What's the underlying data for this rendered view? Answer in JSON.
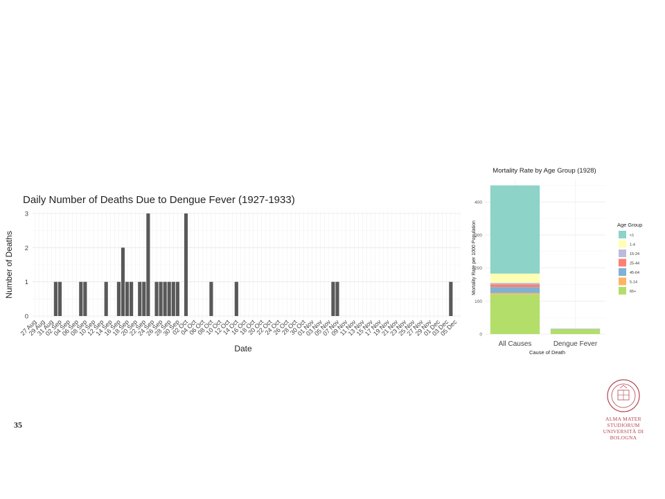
{
  "page": {
    "number": "35"
  },
  "logo": {
    "line1": "ALMA MATER STUDIORUM",
    "line2": "UNIVERSITÀ DI BOLOGNA",
    "seal_text": "ALMA MATER STUDIORUM A.D. 1088",
    "color": "#b5444d"
  },
  "chart_data": [
    {
      "type": "bar",
      "title": "Daily Number of Deaths Due to Dengue Fever (1927-1933)",
      "xlabel": "Date",
      "ylabel": "Number of Deaths",
      "ylim": [
        0,
        3
      ],
      "yticks": [
        0,
        1,
        2,
        3
      ],
      "bar_color": "#595959",
      "grid": true,
      "x_tick_labels": [
        "27 Aug",
        "29 Aug",
        "31 Aug",
        "02 Sep",
        "04 Sep",
        "06 Sep",
        "08 Sep",
        "10 Sep",
        "12 Sep",
        "14 Sep",
        "16 Sep",
        "18 Sep",
        "20 Sep",
        "22 Sep",
        "24 Sep",
        "26 Sep",
        "28 Sep",
        "30 Sep",
        "02 Oct",
        "04 Oct",
        "06 Oct",
        "08 Oct",
        "10 Oct",
        "12 Oct",
        "14 Oct",
        "16 Oct",
        "18 Oct",
        "20 Oct",
        "22 Oct",
        "24 Oct",
        "26 Oct",
        "28 Oct",
        "30 Oct",
        "01 Nov",
        "03 Nov",
        "05 Nov",
        "07 Nov",
        "09 Nov",
        "11 Nov",
        "13 Nov",
        "15 Nov",
        "17 Nov",
        "19 Nov",
        "21 Nov",
        "23 Nov",
        "25 Nov",
        "27 Nov",
        "29 Nov",
        "01 Dec",
        "03 Dec",
        "05 Dec"
      ],
      "x_start_day_label": "27 Aug",
      "bars": [
        {
          "x": "01 Sep",
          "y": 1
        },
        {
          "x": "02 Sep",
          "y": 1
        },
        {
          "x": "07 Sep",
          "y": 1
        },
        {
          "x": "08 Sep",
          "y": 1
        },
        {
          "x": "13 Sep",
          "y": 1
        },
        {
          "x": "16 Sep",
          "y": 1
        },
        {
          "x": "17 Sep",
          "y": 2
        },
        {
          "x": "18 Sep",
          "y": 1
        },
        {
          "x": "19 Sep",
          "y": 1
        },
        {
          "x": "21 Sep",
          "y": 1
        },
        {
          "x": "22 Sep",
          "y": 1
        },
        {
          "x": "23 Sep",
          "y": 3
        },
        {
          "x": "25 Sep",
          "y": 1
        },
        {
          "x": "26 Sep",
          "y": 1
        },
        {
          "x": "27 Sep",
          "y": 1
        },
        {
          "x": "28 Sep",
          "y": 1
        },
        {
          "x": "29 Sep",
          "y": 1
        },
        {
          "x": "30 Sep",
          "y": 1
        },
        {
          "x": "02 Oct",
          "y": 3
        },
        {
          "x": "08 Oct",
          "y": 1
        },
        {
          "x": "14 Oct",
          "y": 1
        },
        {
          "x": "06 Nov",
          "y": 1
        },
        {
          "x": "07 Nov",
          "y": 1
        },
        {
          "x": "04 Dec",
          "y": 1
        }
      ]
    },
    {
      "type": "bar",
      "stacked": true,
      "title": "Mortality Rate by Age Group (1928)",
      "xlabel": "Cause of Death",
      "ylabel": "Mortality Rate per 1000 Population",
      "ylim": [
        0,
        470
      ],
      "yticks": [
        0,
        100,
        200,
        300,
        400
      ],
      "categories": [
        "All Causes",
        "Dengue Fever"
      ],
      "legend": {
        "title": "Age Group",
        "placement": "right"
      },
      "series": [
        {
          "name": "65+",
          "color": "#b3de69",
          "values": [
            120,
            14
          ]
        },
        {
          "name": "5-14",
          "color": "#fdb462",
          "values": [
            4,
            0
          ]
        },
        {
          "name": "45-64",
          "color": "#80b1d3",
          "values": [
            18,
            1
          ]
        },
        {
          "name": "25-44",
          "color": "#fb8072",
          "values": [
            8,
            0.5
          ]
        },
        {
          "name": "15-24",
          "color": "#bebada",
          "values": [
            5,
            0.3
          ]
        },
        {
          "name": "1-4",
          "color": "#ffffb3",
          "values": [
            28,
            0.5
          ]
        },
        {
          "name": "<1",
          "color": "#8dd3c7",
          "values": [
            267,
            0.7
          ]
        }
      ],
      "legend_order": [
        "<1",
        "1-4",
        "15-24",
        "25-44",
        "45-64",
        "5-14",
        "65+"
      ]
    }
  ]
}
